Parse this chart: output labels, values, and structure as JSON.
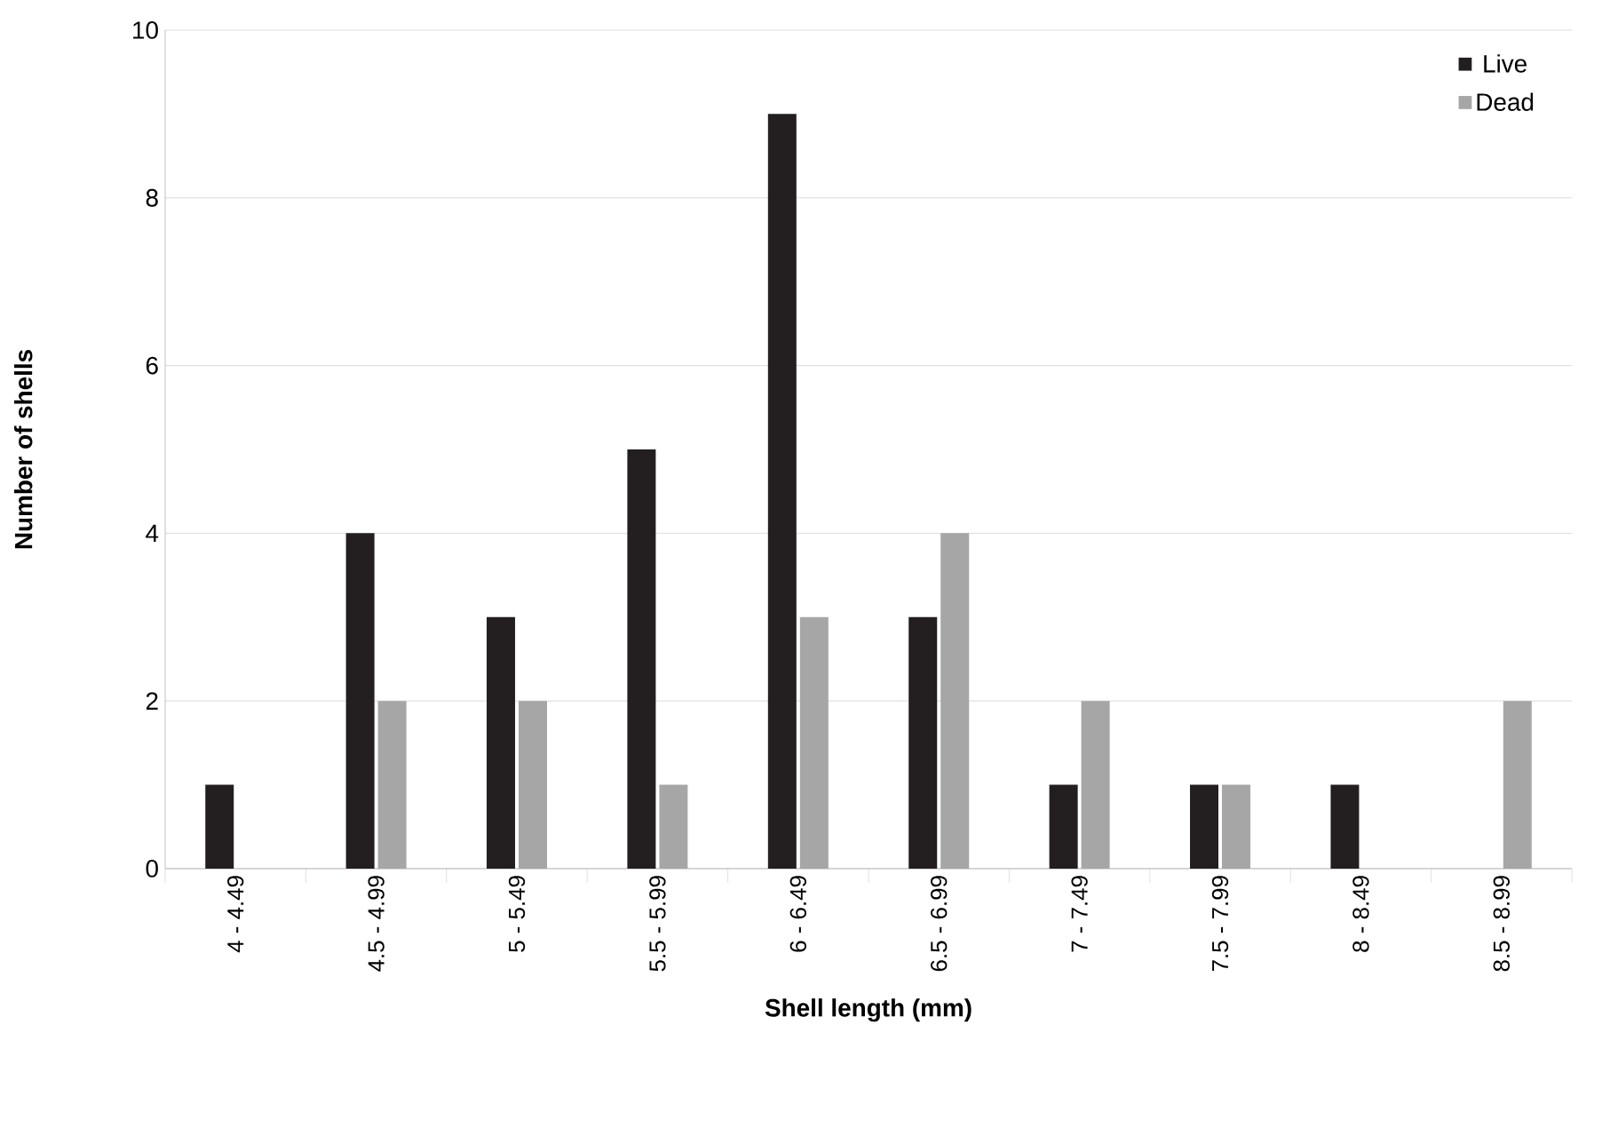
{
  "chart_data": {
    "type": "bar",
    "xlabel": "Shell length (mm)",
    "ylabel": "Number of shells",
    "categories": [
      "4 - 4.49",
      "4.5 - 4.99",
      "5 - 5.49",
      "5.5 - 5.99",
      "6 - 6.49",
      "6.5 - 6.99",
      "7 - 7.49",
      "7.5 - 7.99",
      "8 - 8.49",
      "8.5 - 8.99"
    ],
    "series": [
      {
        "name": "Live",
        "color": "#231f20",
        "values": [
          1,
          4,
          3,
          5,
          9,
          3,
          1,
          1,
          1,
          0
        ]
      },
      {
        "name": "Dead",
        "color": "#a6a6a6",
        "values": [
          0,
          2,
          2,
          1,
          3,
          4,
          2,
          1,
          0,
          2
        ]
      }
    ],
    "ylim": [
      0,
      10
    ],
    "yticks": [
      0,
      2,
      4,
      6,
      8,
      10
    ],
    "grid": "y",
    "legend": "top right"
  }
}
